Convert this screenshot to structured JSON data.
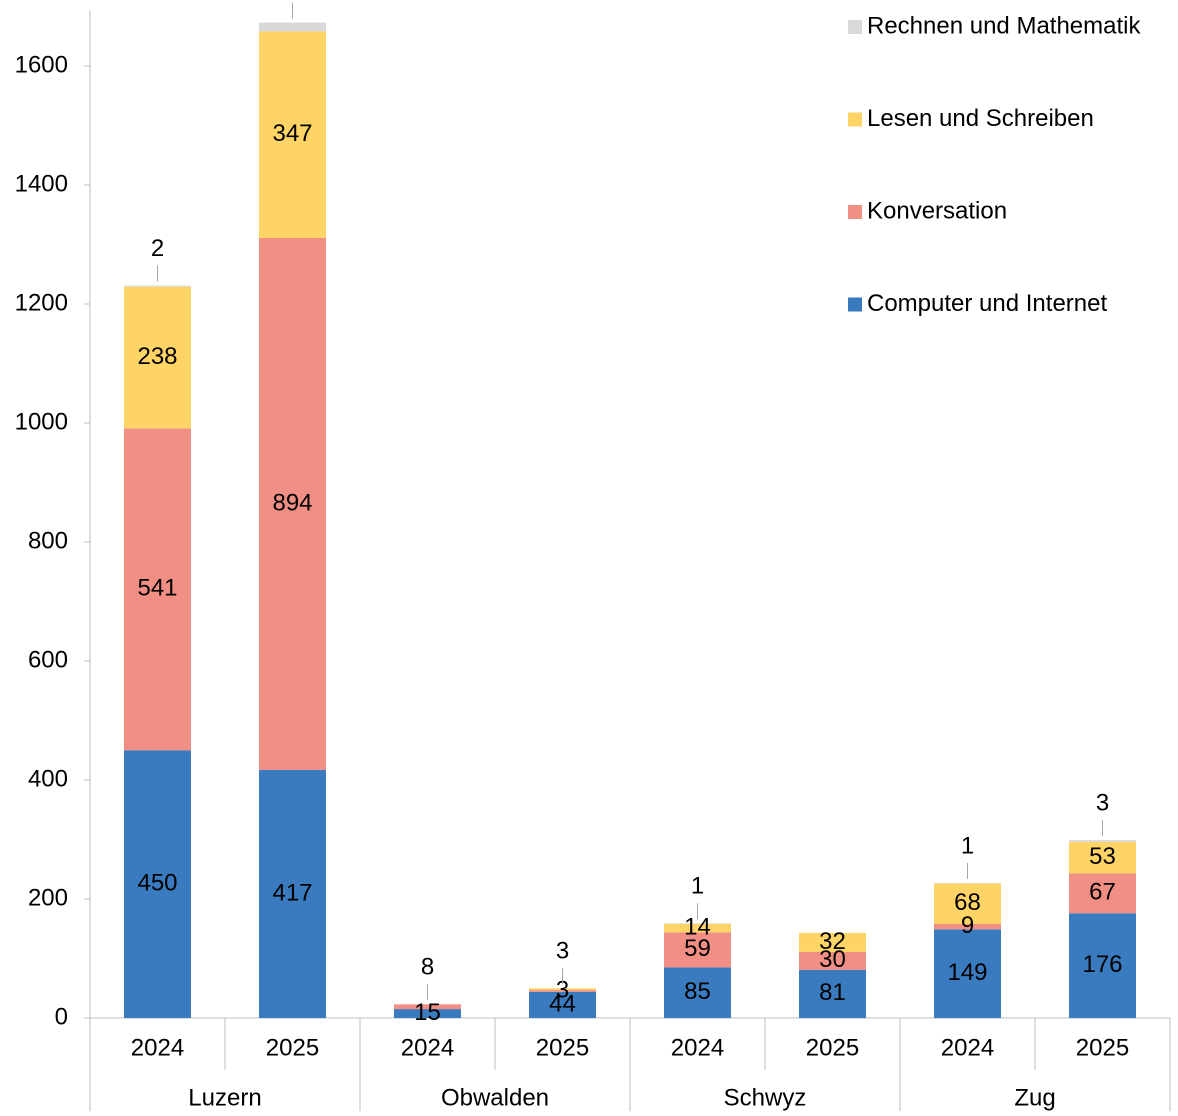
{
  "chart_data": {
    "type": "stacked_bar",
    "categories": [
      "2024",
      "2025",
      "2024",
      "2025",
      "2024",
      "2025",
      "2024",
      "2025"
    ],
    "groups": [
      {
        "name": "Luzern",
        "span": 2
      },
      {
        "name": "Obwalden",
        "span": 2
      },
      {
        "name": "Schwyz",
        "span": 2
      },
      {
        "name": "Zug",
        "span": 2
      }
    ],
    "series": [
      {
        "name": "Computer und Internet",
        "color": "#3a7bbf",
        "values": [
          450,
          417,
          15,
          44,
          85,
          81,
          149,
          176
        ]
      },
      {
        "name": "Konversation",
        "color": "#f28f85",
        "values": [
          541,
          894,
          8,
          3,
          59,
          30,
          9,
          67
        ]
      },
      {
        "name": "Lesen und Schreiben",
        "color": "#ffd466",
        "values": [
          238,
          347,
          null,
          3,
          14,
          32,
          68,
          53
        ]
      },
      {
        "name": "Rechnen und Mathematik",
        "color": "#d9d9d9",
        "values": [
          2,
          15,
          null,
          null,
          1,
          null,
          1,
          3
        ]
      }
    ],
    "ylim": [
      0,
      1700
    ],
    "yticks": [
      0,
      200,
      400,
      600,
      800,
      1000,
      1200,
      1400,
      1600
    ],
    "grid": false,
    "legend": "upper right"
  }
}
